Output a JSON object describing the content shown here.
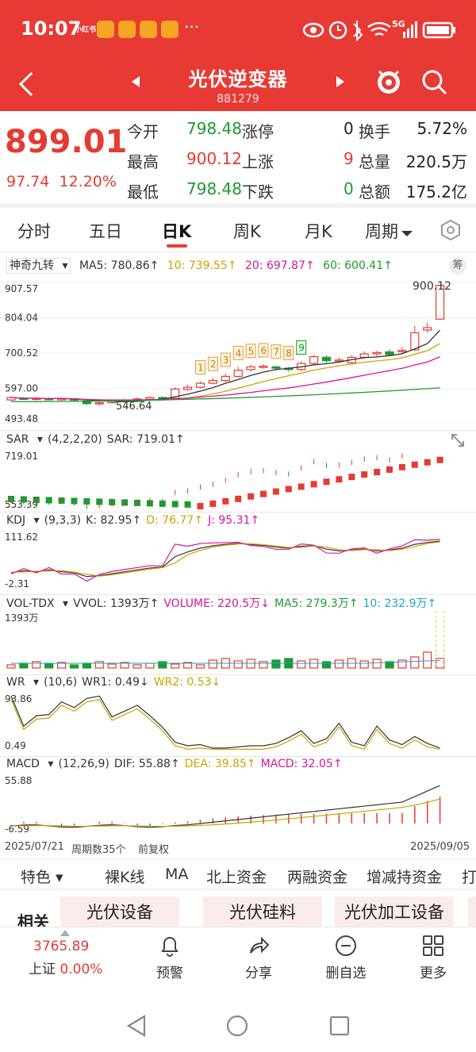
{
  "status_bar": {
    "time": "10:07",
    "app_badge": "小红书",
    "network": "5G"
  },
  "nav": {
    "title": "光伏逆变器",
    "code": "881279"
  },
  "quote": {
    "price": "899.01",
    "change": "97.74",
    "change_pct": "12.20%",
    "stats": [
      {
        "label": "今开",
        "value": "798.48",
        "color": "green"
      },
      {
        "label": "最高",
        "value": "900.12",
        "color": "red"
      },
      {
        "label": "最低",
        "value": "798.48",
        "color": "green"
      }
    ],
    "breadth": [
      {
        "label": "涨停",
        "value": "0",
        "label2": "换手",
        "value2": "5.72%"
      },
      {
        "label": "上涨",
        "value": "9",
        "label2": "总量",
        "value2": "220.5万"
      },
      {
        "label": "下跌",
        "value": "0",
        "label2": "总额",
        "value2": "175.2亿"
      }
    ]
  },
  "tabs": [
    "分时",
    "五日",
    "日K",
    "周K",
    "月K",
    "周期"
  ],
  "main_chart": {
    "indicator": "神奇九转",
    "ma5": "MA5: 780.86↑",
    "ma10": "10: 739.55↑",
    "ma20": "20: 697.87↑",
    "ma60": "60: 600.41↑",
    "badge": "筹",
    "y_labels": [
      "907.57",
      "804.04",
      "700.52",
      "597.00",
      "493.48"
    ],
    "high_label": "900.12",
    "low_label": "546.64",
    "nine_labels": [
      "1",
      "2",
      "3",
      "4",
      "5",
      "6",
      "7",
      "8",
      "9"
    ]
  },
  "sar": {
    "name": "SAR",
    "params": "(4,2,2,20)",
    "value": "SAR: 719.01↑",
    "y_top": "719.01",
    "y_bottom": "553.39"
  },
  "kdj": {
    "name": "KDJ",
    "params": "(9,3,3)",
    "k": "K: 82.95↑",
    "d": "D: 76.77↑",
    "j": "J: 95.31↑",
    "y_top": "111.62",
    "y_bottom": "-2.31"
  },
  "vol": {
    "name": "VOL-TDX",
    "vvol": "VVOL: 1393万↑",
    "volume": "VOLUME: 220.5万↓",
    "ma5": "MA5: 279.3万↑",
    "ma10": "10: 232.9万↑",
    "y_top": "1393万"
  },
  "wr": {
    "name": "WR",
    "params": "(10,6)",
    "wr1": "WR1: 0.49↓",
    "wr2": "WR2: 0.53↓",
    "y_top": "93.86",
    "y_bottom": "0.49"
  },
  "macd": {
    "name": "MACD",
    "params": "(12,26,9)",
    "dif": "DIF: 55.88↑",
    "dea": "DEA: 39.85↑",
    "macd": "MACD: 32.05↑",
    "y_top": "55.88",
    "y_bottom": "-6.59"
  },
  "footer_info": {
    "start_date": "2025/07/21",
    "period_count": "周期数35个",
    "adjust": "前复权",
    "end_date": "2025/09/05"
  },
  "features": [
    "特色",
    "裸K线",
    "MA",
    "北上资金",
    "两融资金",
    "增减持资金",
    "打"
  ],
  "related": {
    "label": "相关",
    "chips": [
      "光伏设备",
      "光伏硅料",
      "光伏加工设备"
    ]
  },
  "bottom": {
    "index_value": "3765.89",
    "index_name": "上证",
    "index_change": "0.00%",
    "items": [
      "预警",
      "分享",
      "删自选",
      "更多"
    ]
  },
  "colors": {
    "brand_red": "#e83a35",
    "up": "#e43b32",
    "down": "#1c9b2e"
  }
}
